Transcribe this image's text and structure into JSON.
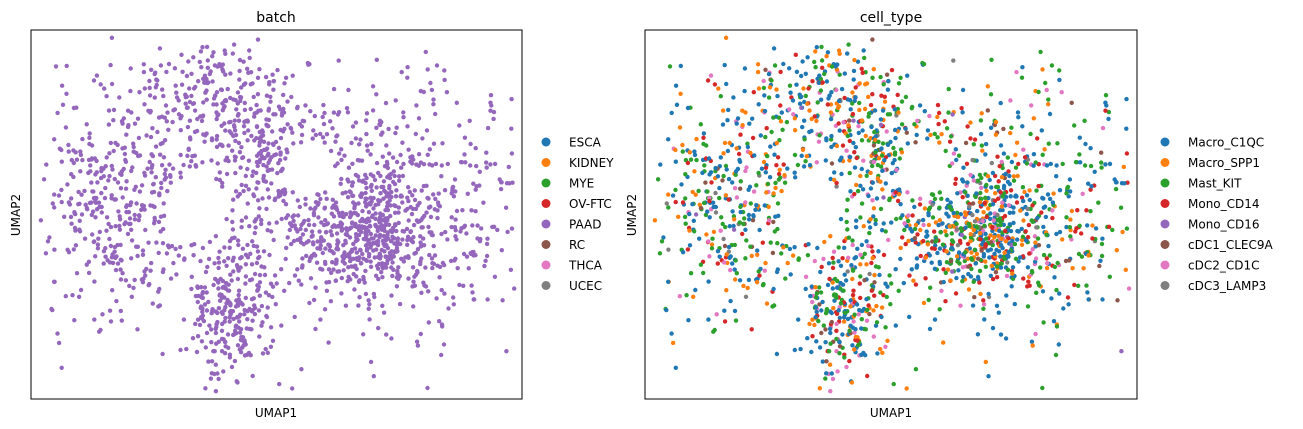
{
  "chart_data": [
    {
      "type": "scatter",
      "title": "batch",
      "xlabel": "UMAP1",
      "ylabel": "UMAP2",
      "xlim": [
        -7.0,
        7.0
      ],
      "ylim": [
        -5.0,
        5.0
      ],
      "grid": false,
      "legend_placement": "right",
      "point_color_by": "batch",
      "legend": [
        {
          "label": "ESCA",
          "color": "#1f77b4"
        },
        {
          "label": "KIDNEY",
          "color": "#ff7f0e"
        },
        {
          "label": "MYE",
          "color": "#2ca02c"
        },
        {
          "label": "OV-FTC",
          "color": "#d62728"
        },
        {
          "label": "PAAD",
          "color": "#9467bd"
        },
        {
          "label": "RC",
          "color": "#8c564b"
        },
        {
          "label": "THCA",
          "color": "#e377c2"
        },
        {
          "label": "UCEC",
          "color": "#7f7f7f"
        }
      ],
      "visible_category": "PAAD",
      "clusters": [
        {
          "x": -4.3,
          "y": 0.4,
          "sx": 1.3,
          "sy": 1.6,
          "n": 420
        },
        {
          "x": -1.3,
          "y": -2.6,
          "sx": 0.6,
          "sy": 1.0,
          "n": 230
        },
        {
          "x": -1.8,
          "y": 3.4,
          "sx": 1.2,
          "sy": 0.8,
          "n": 190
        },
        {
          "x": -0.4,
          "y": 1.6,
          "sx": 1.0,
          "sy": 0.9,
          "n": 160
        },
        {
          "x": 2.9,
          "y": 0.2,
          "sx": 2.3,
          "sy": 1.8,
          "n": 620
        },
        {
          "x": 2.6,
          "y": -0.6,
          "sx": 1.0,
          "sy": 0.7,
          "n": 360
        }
      ],
      "seed": 11
    },
    {
      "type": "scatter",
      "title": "cell_type",
      "xlabel": "UMAP1",
      "ylabel": "UMAP2",
      "xlim": [
        -7.0,
        7.0
      ],
      "ylim": [
        -5.0,
        5.0
      ],
      "grid": false,
      "legend_placement": "right",
      "point_color_by": "cell_type",
      "legend": [
        {
          "label": "Macro_C1QC",
          "color": "#1f77b4"
        },
        {
          "label": "Macro_SPP1",
          "color": "#ff7f0e"
        },
        {
          "label": "Mast_KIT",
          "color": "#2ca02c"
        },
        {
          "label": "Mono_CD14",
          "color": "#d62728"
        },
        {
          "label": "Mono_CD16",
          "color": "#9467bd"
        },
        {
          "label": "cDC1_CLEC9A",
          "color": "#8c564b"
        },
        {
          "label": "cDC2_CD1C",
          "color": "#e377c2"
        },
        {
          "label": "cDC3_LAMP3",
          "color": "#7f7f7f"
        }
      ],
      "category_weights": [
        0.34,
        0.16,
        0.24,
        0.12,
        0.01,
        0.03,
        0.08,
        0.02
      ],
      "clusters": [
        {
          "x": -4.3,
          "y": 0.4,
          "sx": 1.3,
          "sy": 1.6,
          "n": 420
        },
        {
          "x": -1.3,
          "y": -2.6,
          "sx": 0.6,
          "sy": 1.0,
          "n": 230
        },
        {
          "x": -1.8,
          "y": 3.4,
          "sx": 1.2,
          "sy": 0.8,
          "n": 190
        },
        {
          "x": -0.4,
          "y": 1.6,
          "sx": 1.0,
          "sy": 0.9,
          "n": 160
        },
        {
          "x": 2.9,
          "y": 0.2,
          "sx": 2.3,
          "sy": 1.8,
          "n": 620
        },
        {
          "x": 2.6,
          "y": -0.6,
          "sx": 1.0,
          "sy": 0.7,
          "n": 360
        }
      ],
      "seed": 11
    }
  ]
}
